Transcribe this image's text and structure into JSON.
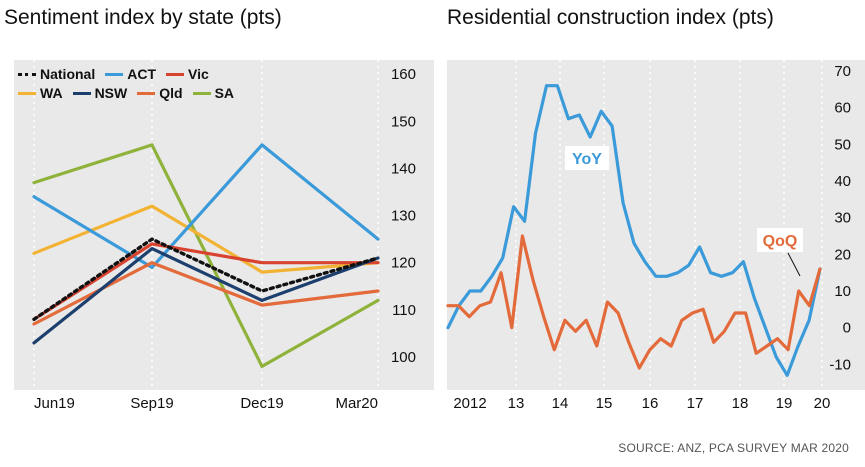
{
  "left_chart": {
    "title": "Sentiment index by state (pts)"
  },
  "right_chart": {
    "title": "Residential construction index (pts)"
  },
  "source": "SOURCE: ANZ, PCA SURVEY MAR 2020",
  "colors": {
    "National": "#111111",
    "ACT": "#3b9ad9",
    "Vic": "#d8432f",
    "WA": "#f2b233",
    "NSW": "#1c3f6e",
    "Qld": "#e36a3a",
    "SA": "#8fb23a",
    "YoY": "#3b9ad9",
    "QoQ": "#e36a3a",
    "panel": "#e9e9e9"
  },
  "chart_data": [
    {
      "type": "line",
      "title": "Sentiment index by state (pts)",
      "categories": [
        "Jun19",
        "Sep19",
        "Dec19",
        "Mar20"
      ],
      "y_ticks": [
        100,
        110,
        120,
        130,
        140,
        150,
        160
      ],
      "ylim": [
        93,
        163
      ],
      "grid": "vertical dotted",
      "legend_placement": "top-left",
      "legend_rows": [
        [
          "National",
          "ACT",
          "Vic"
        ],
        [
          "WA",
          "NSW",
          "Qld",
          "SA"
        ]
      ],
      "series": [
        {
          "name": "National",
          "values": [
            108,
            125,
            114,
            121
          ],
          "style": "dotted"
        },
        {
          "name": "ACT",
          "values": [
            134,
            119,
            145,
            125
          ]
        },
        {
          "name": "Vic",
          "values": [
            108,
            124,
            120,
            120
          ]
        },
        {
          "name": "WA",
          "values": [
            122,
            132,
            118,
            120
          ]
        },
        {
          "name": "NSW",
          "values": [
            103,
            123,
            112,
            121
          ]
        },
        {
          "name": "Qld",
          "values": [
            107,
            120,
            111,
            114
          ]
        },
        {
          "name": "SA",
          "values": [
            137,
            145,
            98,
            112
          ]
        }
      ]
    },
    {
      "type": "line",
      "title": "Residential construction index (pts)",
      "x_ticks": [
        "2012",
        "13",
        "14",
        "15",
        "16",
        "17",
        "18",
        "19",
        "20"
      ],
      "y_ticks": [
        -10,
        0,
        10,
        20,
        30,
        40,
        50,
        60,
        70
      ],
      "ylim": [
        -17,
        73
      ],
      "grid": "vertical dotted",
      "annotations": [
        "YoY",
        "QoQ"
      ],
      "series": [
        {
          "name": "YoY",
          "values": [
            0,
            6,
            10,
            10,
            14,
            19,
            33,
            29,
            53,
            66,
            66,
            57,
            58,
            52,
            59,
            55,
            34,
            23,
            18,
            14,
            14,
            15,
            17,
            22,
            15,
            14,
            15,
            18,
            8,
            0,
            -8,
            -13,
            -5,
            2,
            16
          ]
        },
        {
          "name": "QoQ",
          "values": [
            6,
            6,
            3,
            6,
            7,
            15,
            0,
            25,
            13,
            3,
            -6,
            2,
            -1,
            2,
            -5,
            7,
            4,
            -4,
            -11,
            -6,
            -3,
            -5,
            2,
            4,
            5,
            -4,
            -1,
            4,
            4,
            -7,
            -5,
            -3,
            -6,
            10,
            6,
            16
          ]
        }
      ]
    }
  ]
}
